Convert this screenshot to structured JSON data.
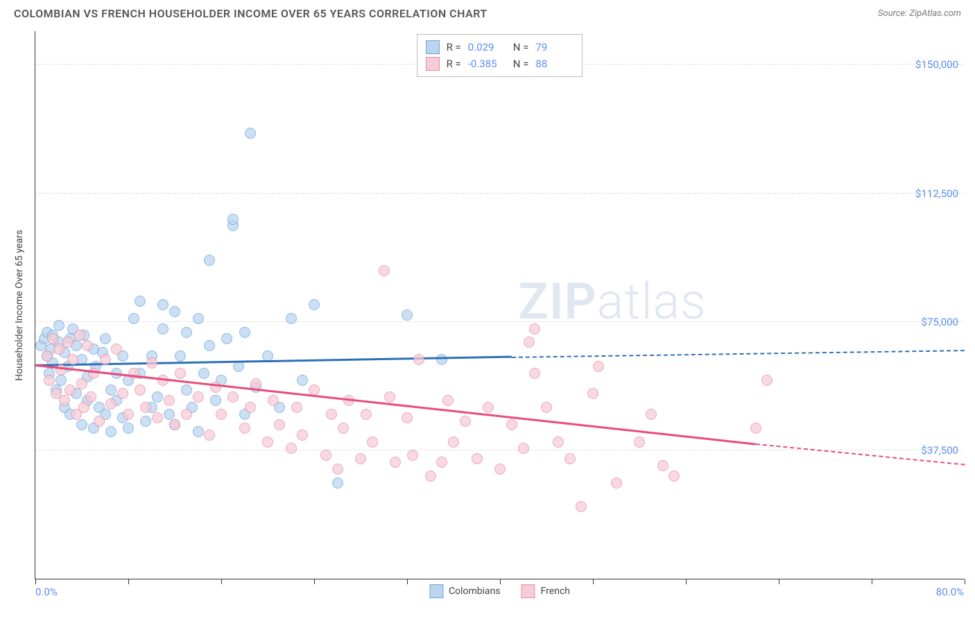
{
  "title": "COLOMBIAN VS FRENCH HOUSEHOLDER INCOME OVER 65 YEARS CORRELATION CHART",
  "source": "Source: ZipAtlas.com",
  "watermark_prefix": "ZIP",
  "watermark_suffix": "atlas",
  "chart": {
    "type": "scatter",
    "y_axis_title": "Householder Income Over 65 years",
    "xlim": [
      0,
      80
    ],
    "ylim": [
      0,
      160000
    ],
    "x_label_min": "0.0%",
    "x_label_max": "80.0%",
    "y_gridlines": [
      37500,
      75000,
      112500,
      150000
    ],
    "y_labels": [
      "$37,500",
      "$75,000",
      "$112,500",
      "$150,000"
    ],
    "x_ticks": [
      0,
      8,
      16,
      24,
      32,
      40,
      48,
      56,
      64,
      72,
      80
    ],
    "grid_color": "#dddddd",
    "background_color": "#ffffff",
    "series": [
      {
        "name": "Colombians",
        "R": "0.029",
        "N": "79",
        "marker_fill": "#bcd5ef",
        "marker_stroke": "#6ba3dd",
        "line_color": "#2f6fb8",
        "line_start": [
          0,
          62000
        ],
        "line_solid_end": [
          41,
          64500
        ],
        "line_dash_end": [
          80,
          66500
        ],
        "points": [
          [
            0.5,
            68000
          ],
          [
            0.8,
            70000
          ],
          [
            1,
            65000
          ],
          [
            1,
            72000
          ],
          [
            1.2,
            60000
          ],
          [
            1.3,
            67000
          ],
          [
            1.5,
            63000
          ],
          [
            1.5,
            71000
          ],
          [
            1.8,
            55000
          ],
          [
            2,
            69000
          ],
          [
            2,
            74000
          ],
          [
            2.2,
            58000
          ],
          [
            2.5,
            66000
          ],
          [
            2.5,
            50000
          ],
          [
            2.8,
            62000
          ],
          [
            3,
            70000
          ],
          [
            3,
            48000
          ],
          [
            3.2,
            73000
          ],
          [
            3.5,
            54000
          ],
          [
            3.5,
            68000
          ],
          [
            4,
            45000
          ],
          [
            4,
            64000
          ],
          [
            4.2,
            71000
          ],
          [
            4.5,
            52000
          ],
          [
            4.5,
            59000
          ],
          [
            5,
            67000
          ],
          [
            5,
            44000
          ],
          [
            5.2,
            62000
          ],
          [
            5.5,
            50000
          ],
          [
            5.8,
            66000
          ],
          [
            6,
            48000
          ],
          [
            6,
            70000
          ],
          [
            6.5,
            55000
          ],
          [
            6.5,
            43000
          ],
          [
            7,
            60000
          ],
          [
            7,
            52000
          ],
          [
            7.5,
            47000
          ],
          [
            7.5,
            65000
          ],
          [
            8,
            58000
          ],
          [
            8,
            44000
          ],
          [
            8.5,
            76000
          ],
          [
            9,
            81000
          ],
          [
            9,
            60000
          ],
          [
            9.5,
            46000
          ],
          [
            10,
            50000
          ],
          [
            10,
            65000
          ],
          [
            10.5,
            53000
          ],
          [
            11,
            73000
          ],
          [
            11,
            80000
          ],
          [
            11.5,
            48000
          ],
          [
            12,
            45000
          ],
          [
            12,
            78000
          ],
          [
            12.5,
            65000
          ],
          [
            13,
            72000
          ],
          [
            13,
            55000
          ],
          [
            13.5,
            50000
          ],
          [
            14,
            76000
          ],
          [
            14,
            43000
          ],
          [
            14.5,
            60000
          ],
          [
            15,
            93000
          ],
          [
            15,
            68000
          ],
          [
            15.5,
            52000
          ],
          [
            16,
            58000
          ],
          [
            16.5,
            70000
          ],
          [
            17,
            103000
          ],
          [
            17,
            105000
          ],
          [
            17.5,
            62000
          ],
          [
            18,
            72000
          ],
          [
            18,
            48000
          ],
          [
            18.5,
            130000
          ],
          [
            19,
            56000
          ],
          [
            20,
            65000
          ],
          [
            21,
            50000
          ],
          [
            22,
            76000
          ],
          [
            23,
            58000
          ],
          [
            24,
            80000
          ],
          [
            26,
            28000
          ],
          [
            32,
            77000
          ],
          [
            35,
            64000
          ]
        ]
      },
      {
        "name": "French",
        "R": "-0.385",
        "N": "88",
        "marker_fill": "#f6cdd7",
        "marker_stroke": "#e68ba3",
        "line_color": "#e94b7a",
        "line_start": [
          0,
          62000
        ],
        "line_solid_end": [
          62,
          39000
        ],
        "line_dash_end": [
          80,
          33000
        ],
        "points": [
          [
            1,
            65000
          ],
          [
            1.2,
            58000
          ],
          [
            1.5,
            70000
          ],
          [
            1.8,
            54000
          ],
          [
            2,
            67000
          ],
          [
            2.2,
            61000
          ],
          [
            2.5,
            52000
          ],
          [
            2.8,
            69000
          ],
          [
            3,
            55000
          ],
          [
            3.2,
            64000
          ],
          [
            3.5,
            48000
          ],
          [
            3.8,
            71000
          ],
          [
            4,
            57000
          ],
          [
            4.2,
            50000
          ],
          [
            4.5,
            68000
          ],
          [
            4.8,
            53000
          ],
          [
            5,
            60000
          ],
          [
            5.5,
            46000
          ],
          [
            6,
            64000
          ],
          [
            6.5,
            51000
          ],
          [
            7,
            67000
          ],
          [
            7.5,
            54000
          ],
          [
            8,
            48000
          ],
          [
            8.5,
            60000
          ],
          [
            9,
            55000
          ],
          [
            9.5,
            50000
          ],
          [
            10,
            63000
          ],
          [
            10.5,
            47000
          ],
          [
            11,
            58000
          ],
          [
            11.5,
            52000
          ],
          [
            12,
            45000
          ],
          [
            12.5,
            60000
          ],
          [
            13,
            48000
          ],
          [
            14,
            53000
          ],
          [
            15,
            42000
          ],
          [
            15.5,
            56000
          ],
          [
            16,
            48000
          ],
          [
            17,
            53000
          ],
          [
            18,
            44000
          ],
          [
            18.5,
            50000
          ],
          [
            19,
            57000
          ],
          [
            20,
            40000
          ],
          [
            20.5,
            52000
          ],
          [
            21,
            45000
          ],
          [
            22,
            38000
          ],
          [
            22.5,
            50000
          ],
          [
            23,
            42000
          ],
          [
            24,
            55000
          ],
          [
            25,
            36000
          ],
          [
            25.5,
            48000
          ],
          [
            26,
            32000
          ],
          [
            26.5,
            44000
          ],
          [
            27,
            52000
          ],
          [
            28,
            35000
          ],
          [
            28.5,
            48000
          ],
          [
            29,
            40000
          ],
          [
            30,
            90000
          ],
          [
            30.5,
            53000
          ],
          [
            31,
            34000
          ],
          [
            32,
            47000
          ],
          [
            32.5,
            36000
          ],
          [
            33,
            64000
          ],
          [
            34,
            30000
          ],
          [
            35,
            34000
          ],
          [
            35.5,
            52000
          ],
          [
            36,
            40000
          ],
          [
            37,
            46000
          ],
          [
            38,
            35000
          ],
          [
            39,
            50000
          ],
          [
            40,
            32000
          ],
          [
            41,
            45000
          ],
          [
            42,
            38000
          ],
          [
            42.5,
            69000
          ],
          [
            43,
            73000
          ],
          [
            43,
            60000
          ],
          [
            44,
            50000
          ],
          [
            45,
            40000
          ],
          [
            46,
            35000
          ],
          [
            47,
            21000
          ],
          [
            48,
            54000
          ],
          [
            48.5,
            62000
          ],
          [
            50,
            28000
          ],
          [
            52,
            40000
          ],
          [
            53,
            48000
          ],
          [
            54,
            33000
          ],
          [
            55,
            30000
          ],
          [
            62,
            44000
          ],
          [
            63,
            58000
          ]
        ]
      }
    ]
  }
}
